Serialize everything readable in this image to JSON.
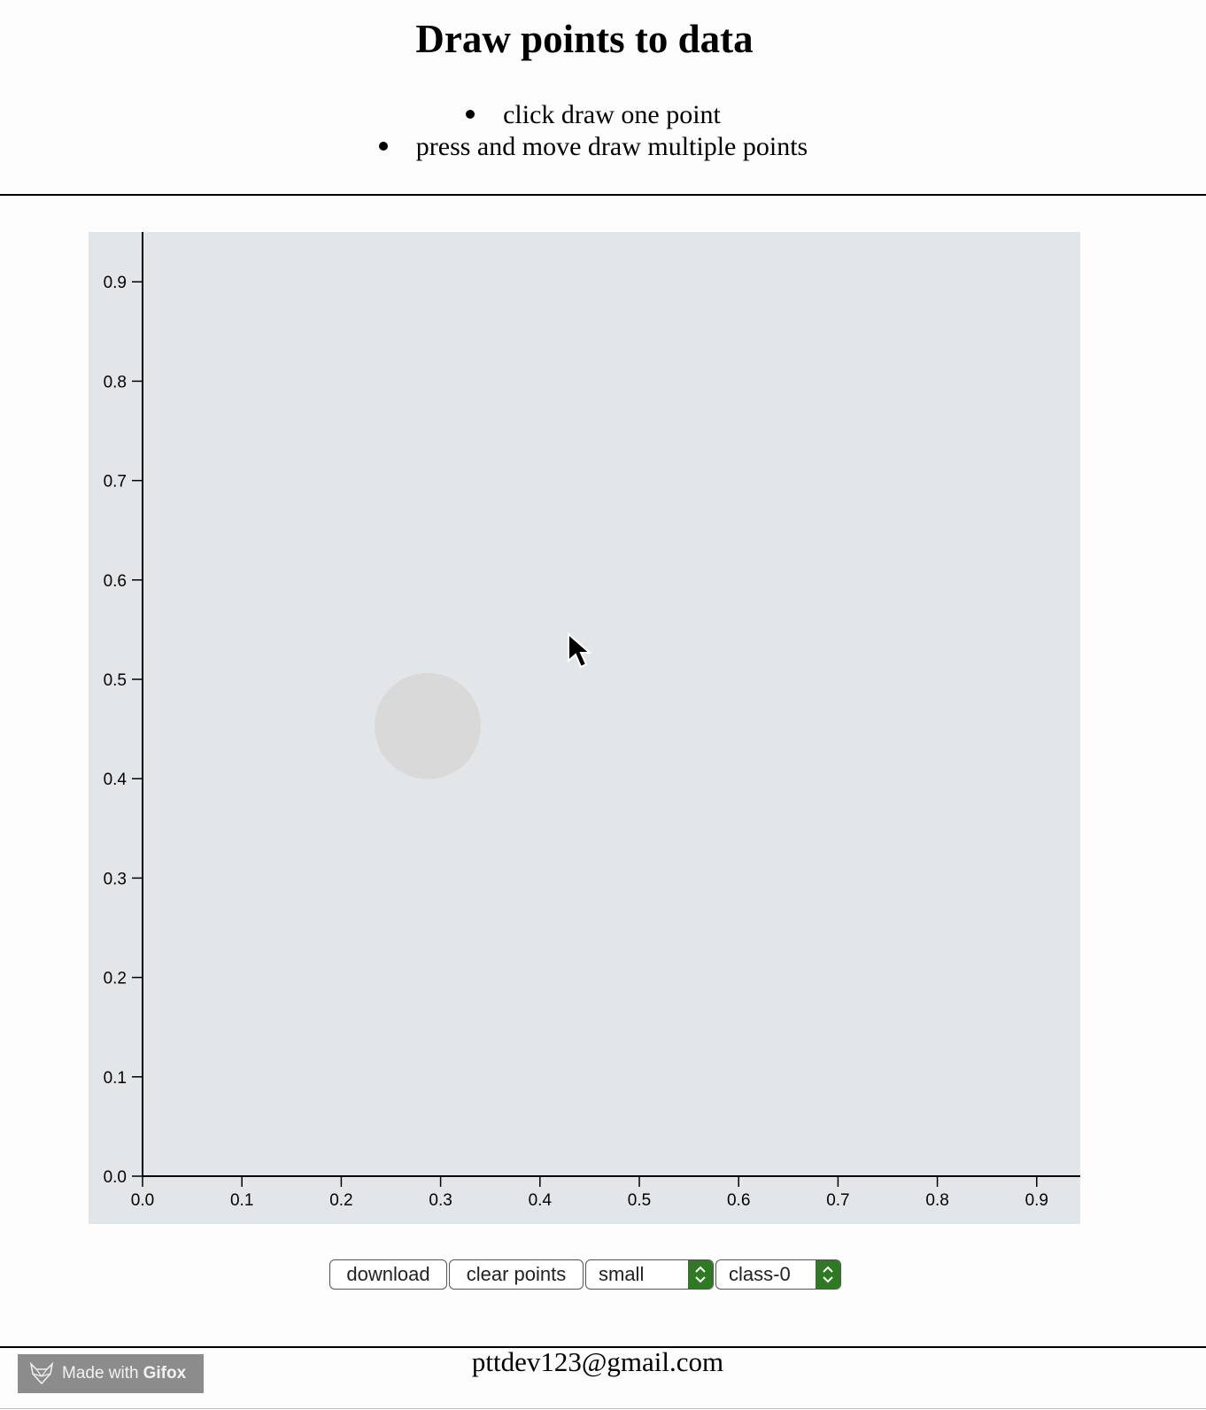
{
  "page": {
    "title": "Draw points to data",
    "instructions": [
      "click draw one point",
      "press and move draw multiple points"
    ],
    "footer_email": "pttdev123@gmail.com",
    "badge_prefix": "Made with",
    "badge_brand": "Gifox"
  },
  "controls": {
    "download_label": "download",
    "clear_label": "clear points",
    "size_value": "small",
    "class_value": "class-0"
  },
  "colors": {
    "plot_background": "#e3e6e8",
    "point_fill": "#d9d9d9",
    "select_arrow": "#2d7a22"
  },
  "chart_data": {
    "type": "scatter",
    "x_ticks": [
      "0.0",
      "0.1",
      "0.2",
      "0.3",
      "0.4",
      "0.5",
      "0.6",
      "0.7",
      "0.8",
      "0.9"
    ],
    "y_ticks": [
      "0.0",
      "0.1",
      "0.2",
      "0.3",
      "0.4",
      "0.5",
      "0.6",
      "0.7",
      "0.8",
      "0.9"
    ],
    "xlim": [
      0,
      0.945
    ],
    "ylim": [
      0,
      0.945
    ],
    "points": [
      {
        "x": 0.287,
        "y": 0.453,
        "size": "large"
      }
    ],
    "grid": false,
    "legend": "none"
  }
}
